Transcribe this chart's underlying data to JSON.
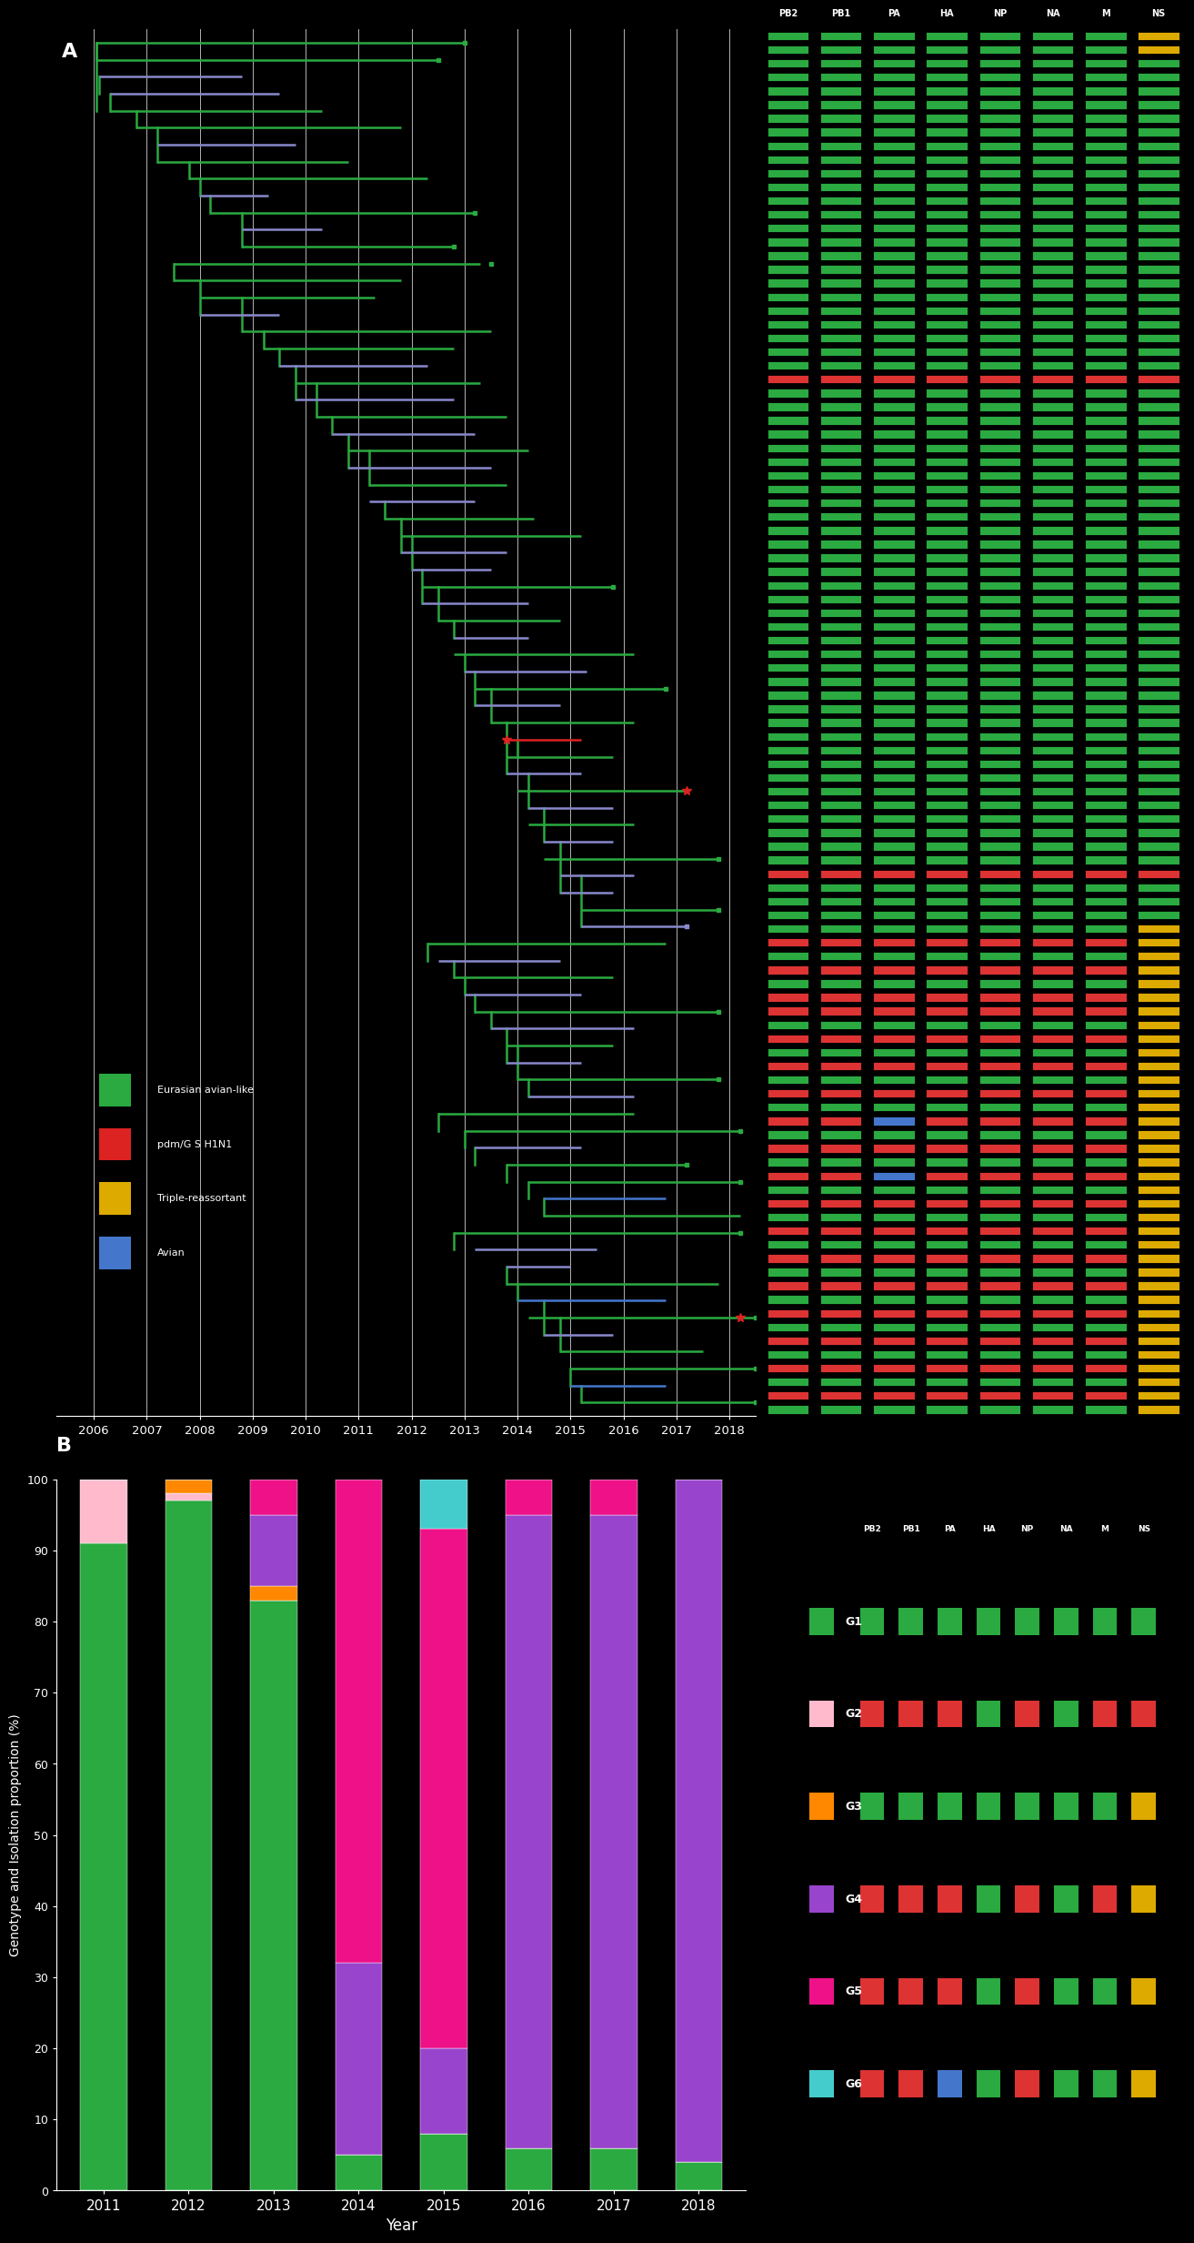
{
  "fig_width": 12.66,
  "fig_height": 24.24,
  "background_color": "#000000",
  "text_color": "#ffffff",
  "tree_years": [
    2006,
    2007,
    2008,
    2009,
    2010,
    2011,
    2012,
    2013,
    2014,
    2015,
    2016,
    2017,
    2018
  ],
  "tree_color_green": "#2aaa40",
  "tree_color_purple": "#8888cc",
  "tree_color_blue": "#4477cc",
  "tree_color_red": "#dd2222",
  "tree_color_yellow": "#ddaa00",
  "legend_items": [
    {
      "label": "Eurasian avian-like",
      "color": "#2aaa40"
    },
    {
      "label": "pdm/G S H1N1",
      "color": "#dd2222"
    },
    {
      "label": "Triple-reassortant",
      "color": "#ddaa00"
    },
    {
      "label": "Avian",
      "color": "#4477cc"
    }
  ],
  "right_grid_cols": [
    "PB2",
    "PB1",
    "PA",
    "HA",
    "NP",
    "NA",
    "M",
    "NS"
  ],
  "grid_row_patterns": {
    "green_row": [
      "G",
      "G",
      "G",
      "G",
      "G",
      "G",
      "G",
      "G"
    ],
    "yellow_ns_row": [
      "G",
      "G",
      "G",
      "G",
      "G",
      "G",
      "G",
      "Y"
    ],
    "red_row": [
      "R",
      "R",
      "R",
      "R",
      "R",
      "R",
      "R",
      "R"
    ],
    "red_yellow_row": [
      "R",
      "R",
      "R",
      "G",
      "R",
      "G",
      "R",
      "Y"
    ],
    "green_red_mixed": [
      "G",
      "R",
      "G",
      "R",
      "G",
      "R",
      "G",
      "Y"
    ],
    "red_blue_row": [
      "R",
      "R",
      "B",
      "G",
      "R",
      "G",
      "G",
      "Y"
    ]
  },
  "grid_sequence": [
    "Y",
    "G",
    "G",
    "G",
    "G",
    "G",
    "G",
    "G",
    "G",
    "G",
    "G",
    "G",
    "G",
    "G",
    "G",
    "G",
    "G",
    "G",
    "G",
    "G",
    "G",
    "G",
    "G",
    "G",
    "G",
    "A",
    "G",
    "G",
    "G",
    "G",
    "G",
    "G",
    "G",
    "G",
    "G",
    "G",
    "G",
    "G",
    "G",
    "G",
    "G",
    "G",
    "G",
    "G",
    "G",
    "G",
    "G",
    "G",
    "G",
    "G",
    "G",
    "G",
    "G",
    "G",
    "G",
    "G",
    "G",
    "G",
    "G",
    "G",
    "G",
    "B",
    "G",
    "G",
    "G",
    "G",
    "G",
    "G",
    "G",
    "G",
    "G",
    "G",
    "G",
    "G",
    "C",
    "D",
    "D",
    "D",
    "D",
    "D",
    "D",
    "D",
    "D",
    "D",
    "D",
    "D",
    "D",
    "D",
    "D",
    "D",
    "D",
    "D",
    "D",
    "D",
    "D",
    "D",
    "D",
    "D",
    "D",
    "D",
    "D",
    "D",
    "D",
    "D",
    "D",
    "E",
    "E",
    "E",
    "E"
  ],
  "bar_years": [
    "2011",
    "2012",
    "2013",
    "2014",
    "2015",
    "2016",
    "2017",
    "2018"
  ],
  "bar_genotypes": [
    "G1",
    "G2",
    "G3",
    "G4",
    "G5",
    "G6"
  ],
  "bar_colors": {
    "G1": "#2aaa40",
    "G2": "#ffbbcc",
    "G3": "#ff8800",
    "G4": "#9944cc",
    "G5": "#ee1188",
    "G6": "#44cccc"
  },
  "bar_data": {
    "G1": [
      91,
      97,
      83,
      5,
      8,
      6,
      6,
      4
    ],
    "G2": [
      9,
      1,
      0,
      0,
      0,
      0,
      0,
      0
    ],
    "G3": [
      0,
      2,
      2,
      0,
      0,
      0,
      0,
      0
    ],
    "G4": [
      0,
      0,
      10,
      27,
      12,
      89,
      89,
      96
    ],
    "G5": [
      0,
      0,
      5,
      68,
      73,
      5,
      5,
      0
    ],
    "G6": [
      0,
      0,
      0,
      0,
      7,
      0,
      0,
      0
    ]
  },
  "bar_ylabel": "Genotype and Isolation proportion (%)",
  "bar_xlabel": "Year",
  "bar_ylim": [
    0,
    100
  ],
  "genotype_legend_order": [
    "G1",
    "G2",
    "G3",
    "G4",
    "G5",
    "G6"
  ],
  "genotype_legend": {
    "G1": {
      "color": "#2aaa40",
      "segments": [
        "G",
        "G",
        "G",
        "G",
        "G",
        "G",
        "G",
        "G"
      ]
    },
    "G2": {
      "color": "#ffbbcc",
      "segments": [
        "R",
        "R",
        "R",
        "G",
        "R",
        "G",
        "R",
        "R"
      ]
    },
    "G3": {
      "color": "#ff8800",
      "segments": [
        "G",
        "G",
        "G",
        "G",
        "G",
        "G",
        "G",
        "Y"
      ]
    },
    "G4": {
      "color": "#9944cc",
      "segments": [
        "R",
        "R",
        "R",
        "G",
        "R",
        "G",
        "R",
        "Y"
      ]
    },
    "G5": {
      "color": "#ee1188",
      "segments": [
        "R",
        "R",
        "R",
        "G",
        "R",
        "G",
        "G",
        "Y"
      ]
    },
    "G6": {
      "color": "#44cccc",
      "segments": [
        "R",
        "R",
        "B",
        "G",
        "R",
        "G",
        "G",
        "Y"
      ]
    }
  },
  "seg_color_map": {
    "G": "#2aaa40",
    "R": "#dd3333",
    "Y": "#ddaa00",
    "B": "#4477cc"
  }
}
